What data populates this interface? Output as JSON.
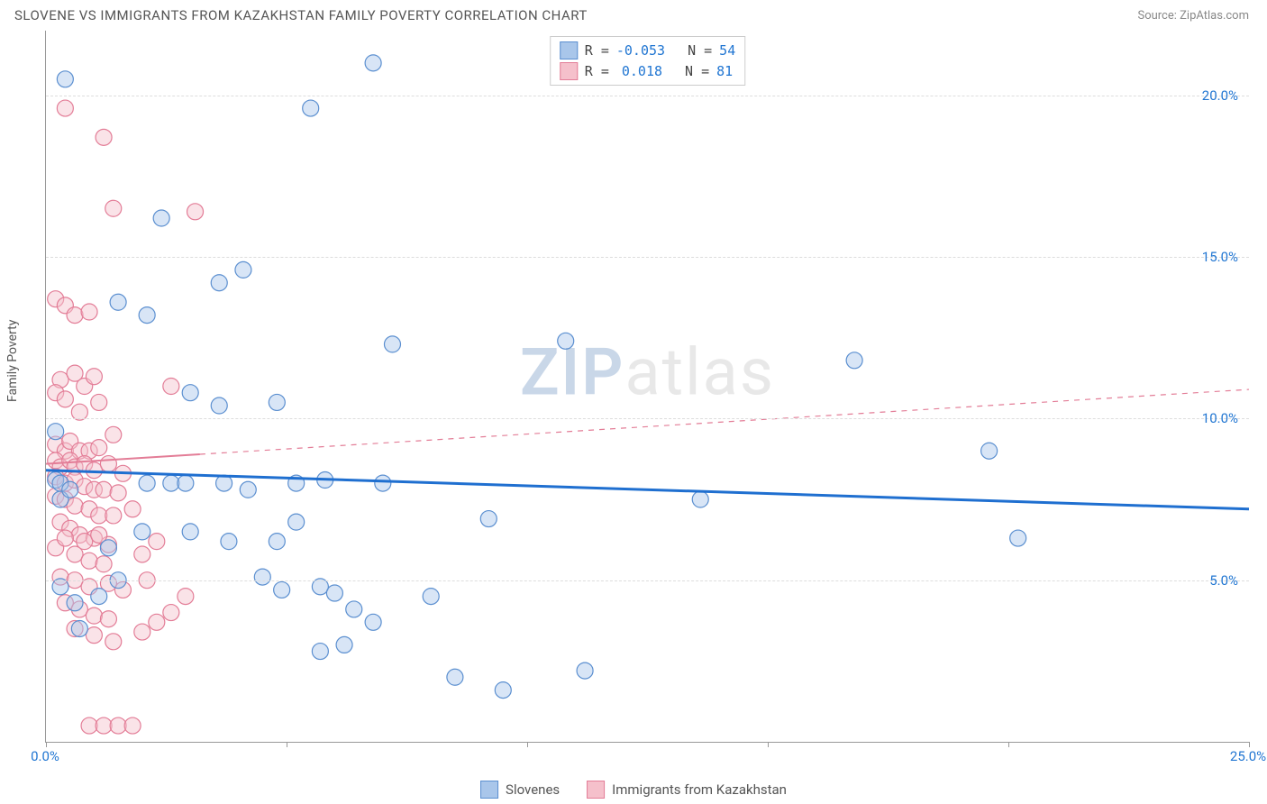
{
  "header": {
    "title": "SLOVENE VS IMMIGRANTS FROM KAZAKHSTAN FAMILY POVERTY CORRELATION CHART",
    "source": "Source: ZipAtlas.com"
  },
  "chart": {
    "type": "scatter",
    "ylabel": "Family Poverty",
    "xlim": [
      0,
      25
    ],
    "ylim": [
      0,
      22
    ],
    "x_ticks": [
      0,
      5,
      10,
      15,
      20,
      25
    ],
    "x_tick_labels_shown": [
      "0.0%",
      "25.0%"
    ],
    "y_ticks": [
      5,
      10,
      15,
      20
    ],
    "y_tick_labels": [
      "5.0%",
      "10.0%",
      "15.0%",
      "20.0%"
    ],
    "y_tick_color": "#2176d2",
    "x_tick_color": "#2176d2",
    "grid_color": "#dddddd",
    "axis_color": "#999999",
    "background": "#ffffff",
    "marker_radius": 9,
    "marker_opacity": 0.45,
    "marker_stroke_width": 1.2,
    "series": [
      {
        "name": "Slovenes",
        "fill": "#a9c6ea",
        "stroke": "#5b8fd0",
        "R": "-0.053",
        "N": "54",
        "trend": {
          "y0": 8.4,
          "y1": 7.2,
          "color": "#1f6fd0",
          "width": 3,
          "solid_until_x": 25,
          "dash_after": false
        },
        "points": [
          [
            0.2,
            9.6
          ],
          [
            0.2,
            8.1
          ],
          [
            0.3,
            8.0
          ],
          [
            0.3,
            7.5
          ],
          [
            0.5,
            7.8
          ],
          [
            0.4,
            20.5
          ],
          [
            6.8,
            21.0
          ],
          [
            5.5,
            19.6
          ],
          [
            2.4,
            16.2
          ],
          [
            2.1,
            13.2
          ],
          [
            1.5,
            13.6
          ],
          [
            4.1,
            14.6
          ],
          [
            3.6,
            14.2
          ],
          [
            3.0,
            10.8
          ],
          [
            3.6,
            10.4
          ],
          [
            4.8,
            10.5
          ],
          [
            2.1,
            8.0
          ],
          [
            2.6,
            8.0
          ],
          [
            2.9,
            8.0
          ],
          [
            3.7,
            8.0
          ],
          [
            2.0,
            6.5
          ],
          [
            3.0,
            6.5
          ],
          [
            3.8,
            6.2
          ],
          [
            1.3,
            6.0
          ],
          [
            4.8,
            6.2
          ],
          [
            4.5,
            5.1
          ],
          [
            4.9,
            4.7
          ],
          [
            5.7,
            4.8
          ],
          [
            5.2,
            6.8
          ],
          [
            6.0,
            4.6
          ],
          [
            6.4,
            4.1
          ],
          [
            5.7,
            2.8
          ],
          [
            6.2,
            3.0
          ],
          [
            6.8,
            3.7
          ],
          [
            7.0,
            8.0
          ],
          [
            7.2,
            12.3
          ],
          [
            8.5,
            2.0
          ],
          [
            9.2,
            6.9
          ],
          [
            9.5,
            1.6
          ],
          [
            10.8,
            12.4
          ],
          [
            11.2,
            2.2
          ],
          [
            13.6,
            7.5
          ],
          [
            16.8,
            11.8
          ],
          [
            19.6,
            9.0
          ],
          [
            20.2,
            6.3
          ],
          [
            0.6,
            4.3
          ],
          [
            1.5,
            5.0
          ],
          [
            1.1,
            4.5
          ],
          [
            0.7,
            3.5
          ],
          [
            0.3,
            4.8
          ],
          [
            4.2,
            7.8
          ],
          [
            5.2,
            8.0
          ],
          [
            5.8,
            8.1
          ],
          [
            8.0,
            4.5
          ]
        ]
      },
      {
        "name": "Immigrants from Kazakhstan",
        "fill": "#f5c0cb",
        "stroke": "#e37d97",
        "R": "0.018",
        "N": "81",
        "trend": {
          "y0": 8.6,
          "y1": 10.9,
          "color": "#e37d97",
          "width": 2,
          "solid_until_x": 3.2,
          "dash_after": true
        },
        "points": [
          [
            0.4,
            19.6
          ],
          [
            1.2,
            18.7
          ],
          [
            1.4,
            16.5
          ],
          [
            3.1,
            16.4
          ],
          [
            0.2,
            13.7
          ],
          [
            0.4,
            13.5
          ],
          [
            0.6,
            13.2
          ],
          [
            0.9,
            13.3
          ],
          [
            0.3,
            11.2
          ],
          [
            0.6,
            11.4
          ],
          [
            0.8,
            11.0
          ],
          [
            1.0,
            11.3
          ],
          [
            0.2,
            10.8
          ],
          [
            0.4,
            10.6
          ],
          [
            0.7,
            10.2
          ],
          [
            1.1,
            10.5
          ],
          [
            0.2,
            9.2
          ],
          [
            0.4,
            9.0
          ],
          [
            0.5,
            9.3
          ],
          [
            0.7,
            9.0
          ],
          [
            0.9,
            9.0
          ],
          [
            1.1,
            9.1
          ],
          [
            1.4,
            9.5
          ],
          [
            2.6,
            11.0
          ],
          [
            0.2,
            8.7
          ],
          [
            0.3,
            8.5
          ],
          [
            0.5,
            8.7
          ],
          [
            0.6,
            8.5
          ],
          [
            0.8,
            8.6
          ],
          [
            1.0,
            8.4
          ],
          [
            1.3,
            8.6
          ],
          [
            1.6,
            8.3
          ],
          [
            0.2,
            8.2
          ],
          [
            0.4,
            8.0
          ],
          [
            0.6,
            8.1
          ],
          [
            0.8,
            7.9
          ],
          [
            1.0,
            7.8
          ],
          [
            1.2,
            7.8
          ],
          [
            1.5,
            7.7
          ],
          [
            0.2,
            7.6
          ],
          [
            0.4,
            7.5
          ],
          [
            0.6,
            7.3
          ],
          [
            0.9,
            7.2
          ],
          [
            1.1,
            7.0
          ],
          [
            1.4,
            7.0
          ],
          [
            0.3,
            6.8
          ],
          [
            0.5,
            6.6
          ],
          [
            0.7,
            6.4
          ],
          [
            1.0,
            6.3
          ],
          [
            1.3,
            6.1
          ],
          [
            0.2,
            6.0
          ],
          [
            0.6,
            5.8
          ],
          [
            0.9,
            5.6
          ],
          [
            1.2,
            5.5
          ],
          [
            0.4,
            6.3
          ],
          [
            0.8,
            6.2
          ],
          [
            1.1,
            6.4
          ],
          [
            0.3,
            5.1
          ],
          [
            0.6,
            5.0
          ],
          [
            0.9,
            4.8
          ],
          [
            1.3,
            4.9
          ],
          [
            1.6,
            4.7
          ],
          [
            0.4,
            4.3
          ],
          [
            0.7,
            4.1
          ],
          [
            1.0,
            3.9
          ],
          [
            1.3,
            3.8
          ],
          [
            0.6,
            3.5
          ],
          [
            1.0,
            3.3
          ],
          [
            1.4,
            3.1
          ],
          [
            2.0,
            3.4
          ],
          [
            2.3,
            3.7
          ],
          [
            2.6,
            4.0
          ],
          [
            2.9,
            4.5
          ],
          [
            0.9,
            0.5
          ],
          [
            1.2,
            0.5
          ],
          [
            1.5,
            0.5
          ],
          [
            1.8,
            0.5
          ],
          [
            2.0,
            5.8
          ],
          [
            2.3,
            6.2
          ],
          [
            1.8,
            7.2
          ],
          [
            2.1,
            5.0
          ]
        ]
      }
    ],
    "stats_legend": {
      "R_label": "R =",
      "N_label": "N ="
    },
    "watermark": {
      "zip": "ZIP",
      "atlas": "atlas"
    }
  },
  "bottom_legend": {
    "items": [
      "Slovenes",
      "Immigrants from Kazakhstan"
    ]
  }
}
